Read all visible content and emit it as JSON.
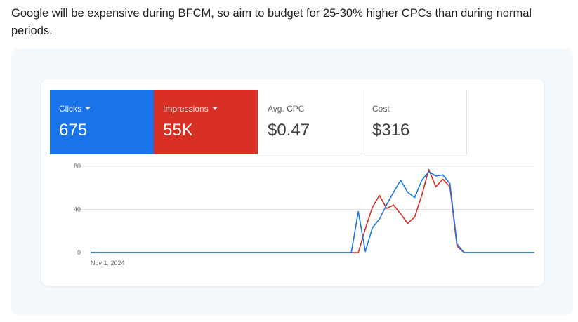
{
  "intro_text": "Google will be expensive during BFCM, so aim to budget for 25-30% higher CPCs than during normal periods.",
  "metrics": {
    "clicks": {
      "label": "Clicks",
      "value": "675"
    },
    "impressions": {
      "label": "Impressions",
      "value": "55K"
    },
    "avg_cpc": {
      "label": "Avg. CPC",
      "value": "$0.47"
    },
    "cost": {
      "label": "Cost",
      "value": "$316"
    }
  },
  "colors": {
    "clicks": "#1a73e8",
    "impressions": "#d93025",
    "panel_bg": "#f3f9fc",
    "gridline": "#e0e0e0"
  },
  "chart_data": {
    "type": "line",
    "title": "",
    "xlabel": "",
    "ylabel": "",
    "x_tick_labels": [
      "Nov 1, 2024"
    ],
    "y_ticks": [
      0,
      40,
      80
    ],
    "ylim": [
      0,
      80
    ],
    "x": [
      0,
      1,
      2,
      3,
      4,
      5,
      6,
      7,
      8,
      9,
      10,
      11,
      12,
      13,
      14,
      15,
      16,
      17,
      18,
      19,
      20,
      21,
      22,
      23,
      24,
      25,
      26,
      27,
      28,
      29,
      30,
      31,
      32,
      33,
      34,
      35,
      36,
      37,
      38,
      39,
      40,
      41,
      42,
      43,
      44,
      45,
      46,
      47,
      48,
      49,
      50,
      51,
      52,
      53,
      54,
      55,
      56,
      57,
      58,
      59,
      60,
      61,
      62,
      63
    ],
    "grid": true,
    "legend": "none",
    "series": [
      {
        "name": "Clicks",
        "color": "#1a73e8",
        "values": [
          0,
          0,
          0,
          0,
          0,
          0,
          0,
          0,
          0,
          0,
          0,
          0,
          0,
          0,
          0,
          0,
          0,
          0,
          0,
          0,
          0,
          0,
          0,
          0,
          0,
          0,
          0,
          0,
          0,
          0,
          0,
          0,
          0,
          0,
          0,
          0,
          0,
          0,
          38,
          1,
          23,
          31,
          44,
          56,
          67,
          56,
          51,
          67,
          75,
          71,
          72,
          64,
          8,
          0,
          0,
          0,
          0,
          0,
          0,
          0,
          0,
          0,
          0,
          0
        ]
      },
      {
        "name": "Impressions",
        "color": "#d93025",
        "values": [
          0,
          0,
          0,
          0,
          0,
          0,
          0,
          0,
          0,
          0,
          0,
          0,
          0,
          0,
          0,
          0,
          0,
          0,
          0,
          0,
          0,
          0,
          0,
          0,
          0,
          0,
          0,
          0,
          0,
          0,
          0,
          0,
          0,
          0,
          0,
          0,
          0,
          0,
          0,
          22,
          42,
          53,
          41,
          44,
          36,
          27,
          33,
          53,
          77,
          61,
          68,
          61,
          6,
          0,
          0,
          0,
          0,
          0,
          0,
          0,
          0,
          0,
          0,
          0
        ]
      }
    ]
  }
}
